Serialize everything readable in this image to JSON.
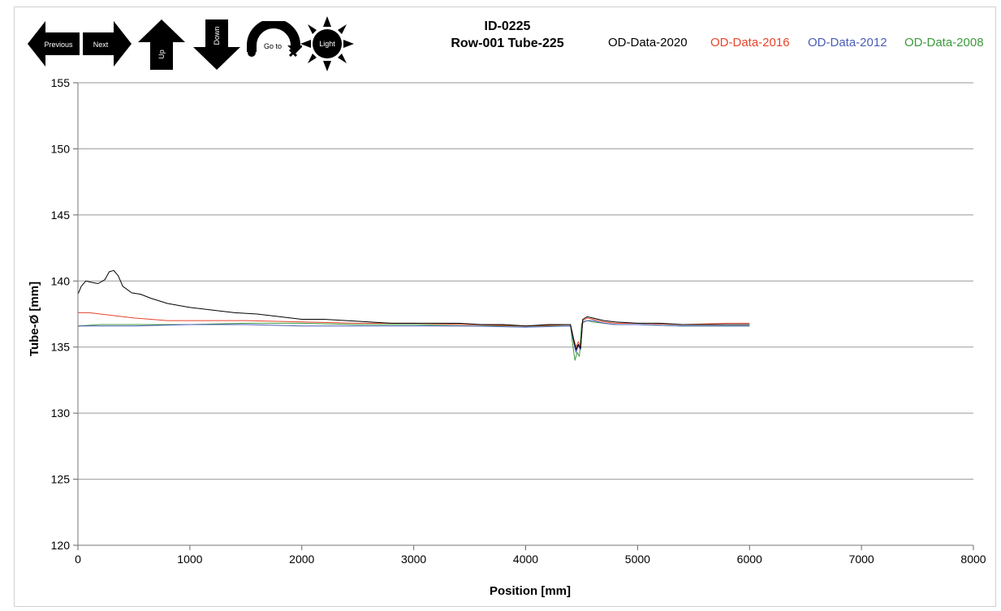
{
  "toolbar": {
    "previous_label": "Previous",
    "next_label": "Next",
    "up_label": "Up",
    "down_label": "Down",
    "goto_label": "Go to",
    "light_label": "Light"
  },
  "chart_data": {
    "type": "line",
    "title_line1": "ID-0225",
    "title_line2": "Row-001 Tube-225",
    "xlabel": "Position [mm]",
    "ylabel": "Tube-Ø [mm]",
    "xlim": [
      0,
      8000
    ],
    "ylim": [
      120,
      155
    ],
    "xticks": [
      0,
      1000,
      2000,
      3000,
      4000,
      5000,
      6000,
      7000,
      8000
    ],
    "yticks": [
      120,
      125,
      130,
      135,
      140,
      145,
      150,
      155
    ],
    "grid": "horizontal",
    "legend_position": "top-right",
    "series": [
      {
        "name": "OD-Data-2020",
        "color": "#000000",
        "x": [
          0,
          30,
          70,
          120,
          180,
          240,
          280,
          320,
          360,
          400,
          480,
          560,
          650,
          800,
          1000,
          1200,
          1400,
          1600,
          1800,
          2000,
          2200,
          2400,
          2600,
          2800,
          3000,
          3200,
          3400,
          3600,
          3800,
          4000,
          4200,
          4400,
          4430,
          4450,
          4470,
          4490,
          4510,
          4550,
          4600,
          4700,
          4800,
          5000,
          5200,
          5400,
          5600,
          5800,
          6000
        ],
        "y": [
          139.0,
          139.6,
          140.0,
          139.9,
          139.8,
          140.1,
          140.7,
          140.8,
          140.4,
          139.6,
          139.1,
          139.0,
          138.7,
          138.3,
          138.0,
          137.8,
          137.6,
          137.5,
          137.3,
          137.1,
          137.1,
          137.0,
          136.9,
          136.8,
          136.8,
          136.8,
          136.8,
          136.7,
          136.7,
          136.6,
          136.7,
          136.7,
          135.5,
          134.8,
          135.2,
          134.9,
          137.1,
          137.3,
          137.2,
          137.0,
          136.9,
          136.8,
          136.8,
          136.7,
          136.7,
          136.7,
          136.7
        ]
      },
      {
        "name": "OD-Data-2016",
        "color": "#e8442a",
        "x": [
          0,
          100,
          300,
          500,
          800,
          1000,
          1500,
          2000,
          2500,
          3000,
          3500,
          4000,
          4400,
          4430,
          4450,
          4470,
          4490,
          4510,
          4550,
          4600,
          4700,
          4800,
          5000,
          5400,
          5800,
          6000
        ],
        "y": [
          137.6,
          137.6,
          137.4,
          137.2,
          137.0,
          137.0,
          137.0,
          136.9,
          136.8,
          136.8,
          136.7,
          136.6,
          136.7,
          135.6,
          135.0,
          135.4,
          135.0,
          137.0,
          137.2,
          137.1,
          136.9,
          136.8,
          136.8,
          136.7,
          136.8,
          136.8
        ]
      },
      {
        "name": "OD-Data-2012",
        "color": "#4a5db8",
        "x": [
          0,
          200,
          500,
          1000,
          1500,
          2000,
          2500,
          3000,
          3500,
          4000,
          4400,
          4430,
          4450,
          4470,
          4490,
          4510,
          4550,
          4600,
          4700,
          4800,
          5000,
          5400,
          5800,
          6000
        ],
        "y": [
          136.6,
          136.6,
          136.6,
          136.7,
          136.7,
          136.6,
          136.6,
          136.6,
          136.6,
          136.5,
          136.6,
          135.3,
          134.6,
          135.1,
          134.8,
          136.9,
          137.0,
          137.0,
          136.8,
          136.7,
          136.7,
          136.6,
          136.6,
          136.6
        ]
      },
      {
        "name": "OD-Data-2008",
        "color": "#3c9a3c",
        "x": [
          0,
          200,
          500,
          1000,
          1500,
          2000,
          2500,
          3000,
          3500,
          4000,
          4400,
          4420,
          4440,
          4460,
          4480,
          4500,
          4550,
          4600,
          4700,
          4800,
          5000,
          5400,
          5800,
          6000
        ],
        "y": [
          136.6,
          136.7,
          136.7,
          136.7,
          136.8,
          136.8,
          136.7,
          136.7,
          136.6,
          136.6,
          136.6,
          135.2,
          134.0,
          134.6,
          134.3,
          136.8,
          137.0,
          136.9,
          136.8,
          136.7,
          136.7,
          136.6,
          136.6,
          136.6
        ]
      }
    ]
  }
}
